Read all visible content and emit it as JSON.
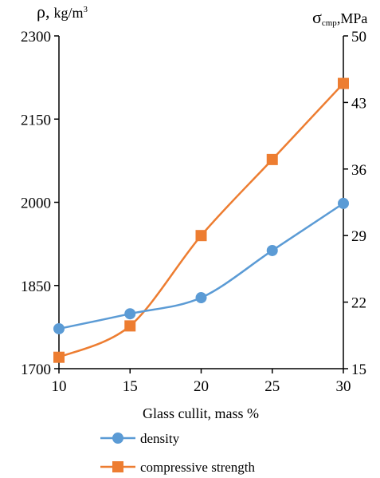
{
  "chart_data": {
    "type": "line",
    "x": [
      10,
      15,
      20,
      25,
      30
    ],
    "xlabel": "Glass cullit, mass %",
    "xlim": [
      10,
      30
    ],
    "xticks": [
      "10",
      "15",
      "20",
      "25",
      "30"
    ],
    "ylabel_left": {
      "symbol": "ρ,",
      "unit": "kg/m",
      "sup": "3"
    },
    "ylim_left": [
      1700,
      2300
    ],
    "yticks_left": [
      "1700",
      "1850",
      "2000",
      "2150",
      "2300"
    ],
    "ylabel_right": {
      "symbol": "σ",
      "sub": "cmp",
      "unit": ",MPa"
    },
    "ylim_right": [
      15,
      50
    ],
    "yticks_right": [
      "15",
      "22",
      "29",
      "36",
      "43",
      "50"
    ],
    "grid": false,
    "legend_position": "bottom",
    "series": [
      {
        "name": "density",
        "axis": "left",
        "color": "#5B9BD5",
        "marker": "circle",
        "values": [
          1772,
          1799,
          1828,
          1913,
          1998
        ]
      },
      {
        "name": "compressive strength",
        "axis": "right",
        "color": "#ED7D31",
        "marker": "square",
        "values": [
          16.2,
          19.5,
          29.0,
          37.0,
          45.0
        ]
      }
    ]
  }
}
